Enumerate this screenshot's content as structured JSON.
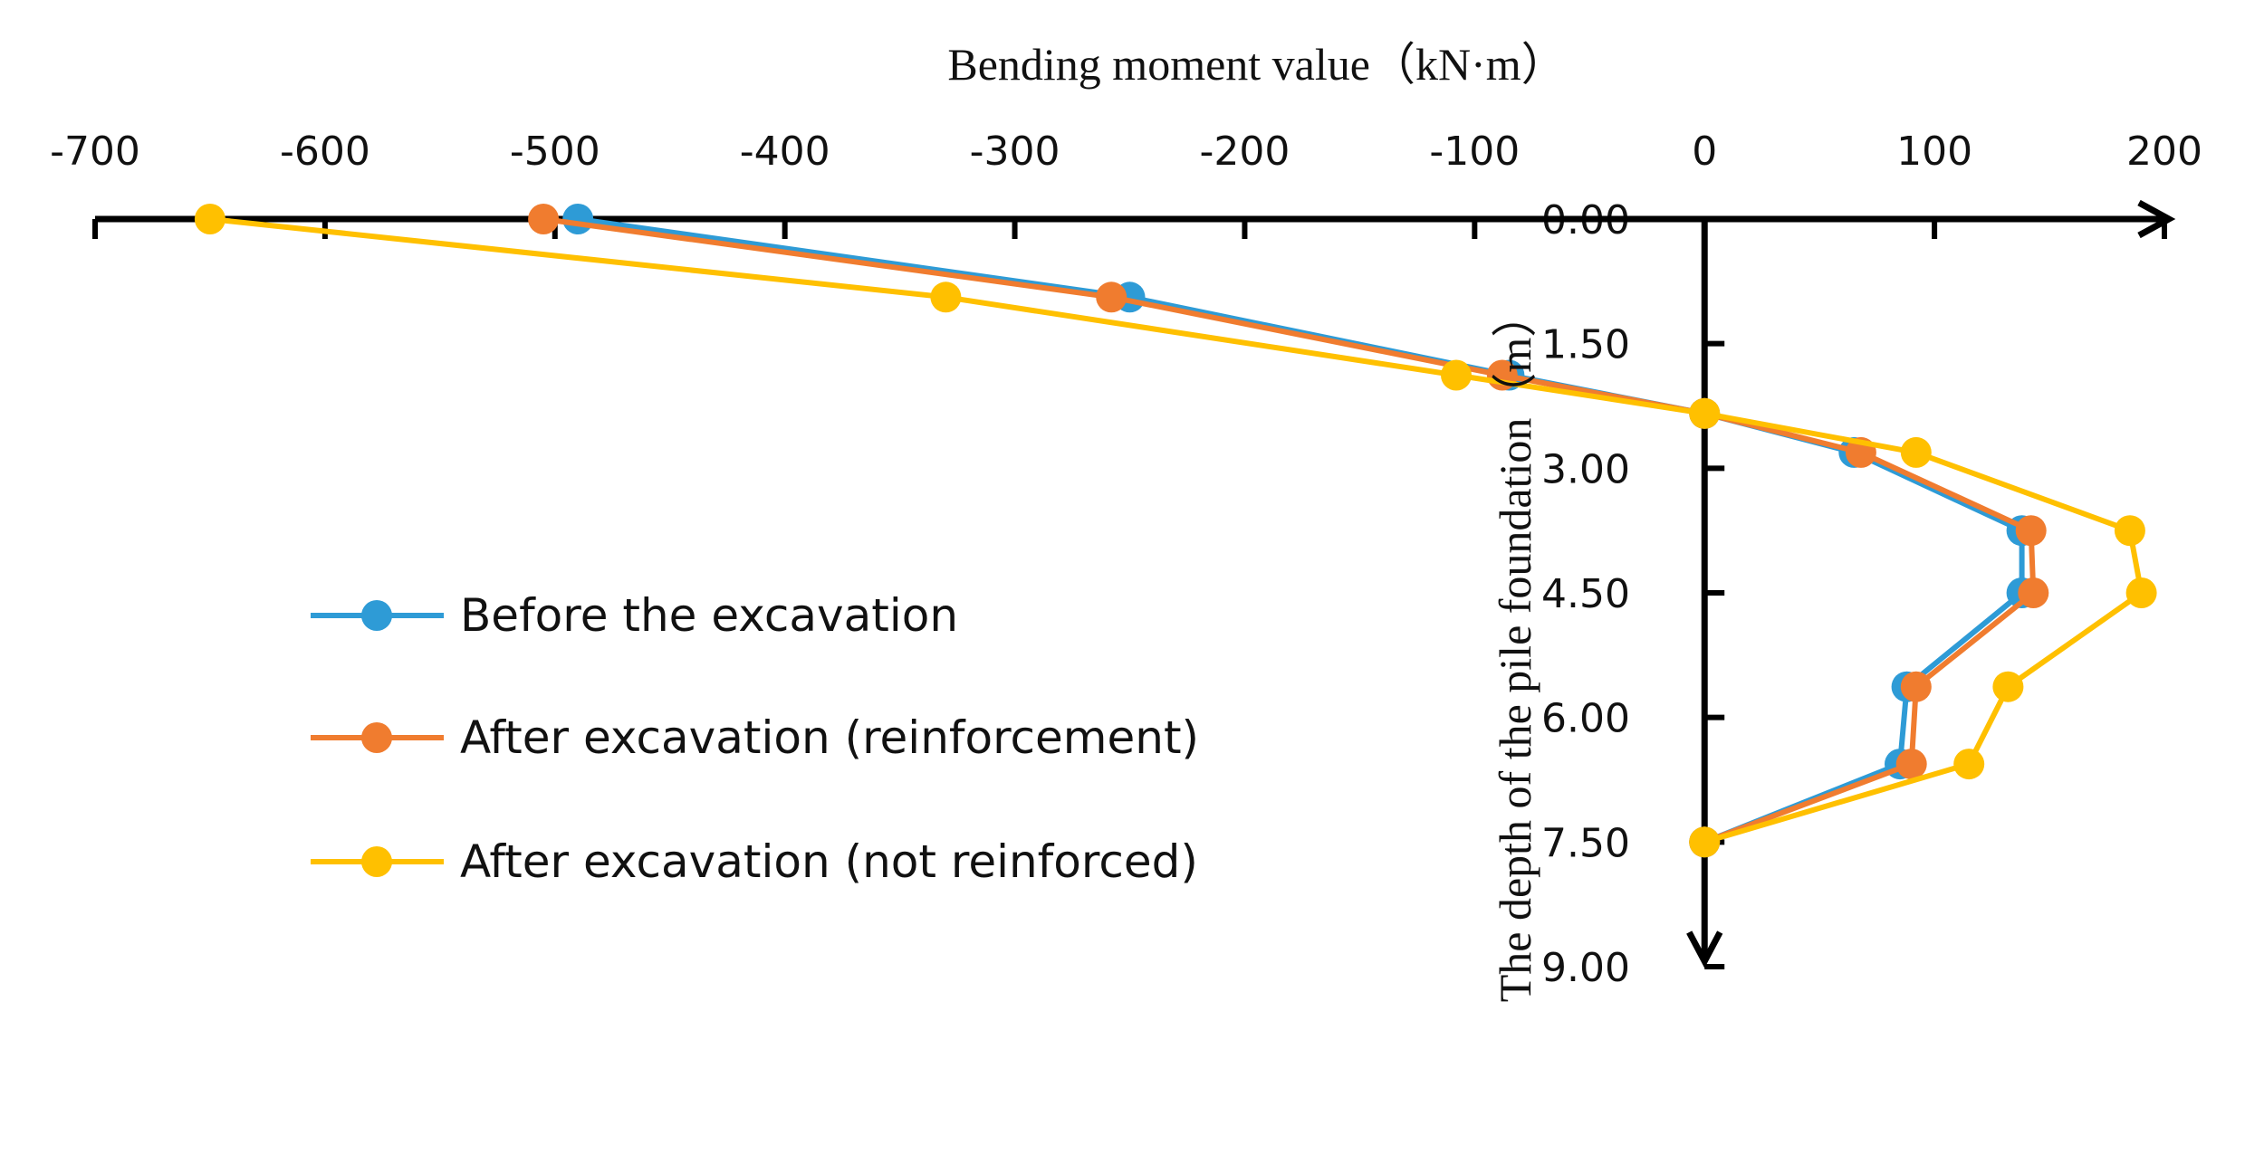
{
  "chart_data": {
    "type": "line",
    "title": "",
    "xlabel": "Bending moment value（kN·m）",
    "ylabel": "The depth of the pile foundation（m）",
    "xlim": [
      -700,
      200
    ],
    "ylim": [
      0,
      9
    ],
    "x_ticks": [
      -700,
      -600,
      -500,
      -400,
      -300,
      -200,
      -100,
      0,
      100,
      200
    ],
    "x_tick_labels": [
      "-700",
      "-600",
      "-500",
      "-400",
      "-300",
      "-200",
      "-100",
      "0",
      "100",
      "200"
    ],
    "y_ticks": [
      0,
      1.5,
      3,
      4.5,
      6,
      7.5,
      9
    ],
    "y_tick_labels": [
      "0.00",
      "1.50",
      "3.00",
      "4.50",
      "6.00",
      "7.50",
      "9.00"
    ],
    "legend_position": "left",
    "series": [
      {
        "name": "Before the excavation",
        "color": "#2E9BD6",
        "points": [
          [
            -490,
            0
          ],
          [
            -250,
            0.94
          ],
          [
            -85,
            1.88
          ],
          [
            0,
            2.34
          ],
          [
            65,
            2.81
          ],
          [
            138,
            3.75
          ],
          [
            138,
            4.5
          ],
          [
            88,
            5.63
          ],
          [
            85,
            6.56
          ],
          [
            0,
            7.5
          ]
        ]
      },
      {
        "name": "After excavation (reinforcement)",
        "color": "#F07C2F",
        "points": [
          [
            -505,
            0
          ],
          [
            -258,
            0.94
          ],
          [
            -88,
            1.88
          ],
          [
            0,
            2.34
          ],
          [
            68,
            2.81
          ],
          [
            142,
            3.75
          ],
          [
            143,
            4.5
          ],
          [
            92,
            5.63
          ],
          [
            90,
            6.56
          ],
          [
            0,
            7.5
          ]
        ]
      },
      {
        "name": "After excavation (not reinforced)",
        "color": "#FFC000",
        "points": [
          [
            -650,
            0
          ],
          [
            -330,
            0.94
          ],
          [
            -108,
            1.88
          ],
          [
            0,
            2.34
          ],
          [
            92,
            2.81
          ],
          [
            185,
            3.75
          ],
          [
            190,
            4.5
          ],
          [
            132,
            5.63
          ],
          [
            115,
            6.56
          ],
          [
            0,
            7.5
          ]
        ]
      }
    ]
  }
}
